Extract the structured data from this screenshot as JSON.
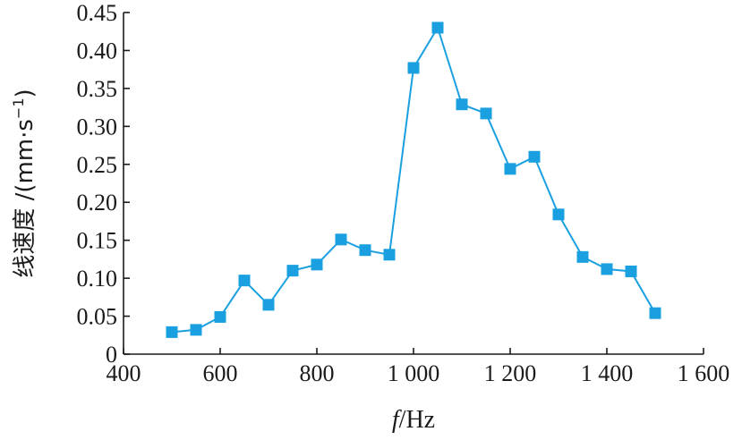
{
  "chart_data": {
    "type": "line",
    "xlabel_italic": "f",
    "xlabel_unit": "/Hz",
    "ylabel": "线速度 /(mm·s",
    "ylabel_sup": "−1",
    "ylabel_close": ")",
    "xlim": [
      400,
      1600
    ],
    "ylim": [
      0,
      0.45
    ],
    "x_ticks": [
      400,
      600,
      800,
      1000,
      1200,
      1400,
      1600
    ],
    "x_tick_labels": [
      "400",
      "600",
      "800",
      "1 000",
      "1 200",
      "1 400",
      "1 600"
    ],
    "y_ticks": [
      0,
      0.05,
      0.1,
      0.15,
      0.2,
      0.25,
      0.3,
      0.35,
      0.4,
      0.45
    ],
    "y_tick_labels": [
      "0",
      "0.05",
      "0.10",
      "0.15",
      "0.20",
      "0.25",
      "0.30",
      "0.35",
      "0.40",
      "0.45"
    ],
    "series": [
      {
        "color": "#1aa0e0",
        "marker": "square",
        "x": [
          500,
          550,
          600,
          650,
          700,
          750,
          800,
          850,
          900,
          950,
          1000,
          1050,
          1100,
          1150,
          1200,
          1250,
          1300,
          1350,
          1400,
          1450,
          1500
        ],
        "y": [
          0.029,
          0.032,
          0.049,
          0.097,
          0.065,
          0.11,
          0.118,
          0.151,
          0.137,
          0.131,
          0.377,
          0.43,
          0.329,
          0.317,
          0.244,
          0.26,
          0.184,
          0.128,
          0.112,
          0.109,
          0.054
        ]
      }
    ]
  }
}
